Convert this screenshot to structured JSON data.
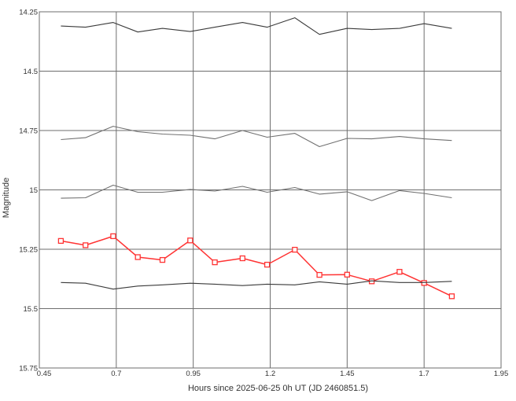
{
  "chart_data": {
    "type": "line",
    "xlabel": "Hours since 2025-06-25 0h UT (JD 2460851.5)",
    "ylabel": "Magnitude",
    "xlim": [
      0.45,
      1.95
    ],
    "ylim": [
      14.25,
      15.75
    ],
    "y_inverted": true,
    "grid": true,
    "x_ticks": [
      "0.45",
      "0.7",
      "0.95",
      "1.2",
      "1.45",
      "1.7",
      "1.95"
    ],
    "y_ticks": [
      "14.25",
      "14.5",
      "14.75",
      "15",
      "15.25",
      "15.5",
      "15.75"
    ],
    "x": [
      0.52,
      0.6,
      0.69,
      0.77,
      0.85,
      0.94,
      1.02,
      1.11,
      1.19,
      1.28,
      1.36,
      1.45,
      1.53,
      1.62,
      1.7,
      1.79
    ],
    "series": [
      {
        "values": [
          14.31,
          14.315,
          14.295,
          14.335,
          14.32,
          14.333,
          14.315,
          14.295,
          14.315,
          14.275,
          14.345,
          14.32,
          14.325,
          14.32,
          14.3,
          14.32
        ],
        "color": "#3a3a3a",
        "marker": "none"
      },
      {
        "values": [
          14.788,
          14.78,
          14.732,
          14.755,
          14.765,
          14.77,
          14.785,
          14.75,
          14.778,
          14.762,
          14.818,
          14.783,
          14.785,
          14.775,
          14.785,
          14.792
        ],
        "color": "#707070",
        "marker": "none"
      },
      {
        "values": [
          15.035,
          15.033,
          14.98,
          15.01,
          15.01,
          14.998,
          15.005,
          14.985,
          15.01,
          14.99,
          15.018,
          15.008,
          15.045,
          15.003,
          15.015,
          15.033
        ],
        "color": "#707070",
        "marker": "none"
      },
      {
        "values": [
          15.215,
          15.233,
          15.195,
          15.283,
          15.295,
          15.213,
          15.305,
          15.288,
          15.315,
          15.252,
          15.358,
          15.357,
          15.385,
          15.345,
          15.392,
          15.448
        ],
        "color": "#ff3333",
        "marker": "square"
      },
      {
        "values": [
          15.39,
          15.393,
          15.418,
          15.405,
          15.4,
          15.393,
          15.397,
          15.403,
          15.397,
          15.4,
          15.387,
          15.397,
          15.383,
          15.39,
          15.39,
          15.385
        ],
        "color": "#3a3a3a",
        "marker": "none"
      }
    ]
  }
}
